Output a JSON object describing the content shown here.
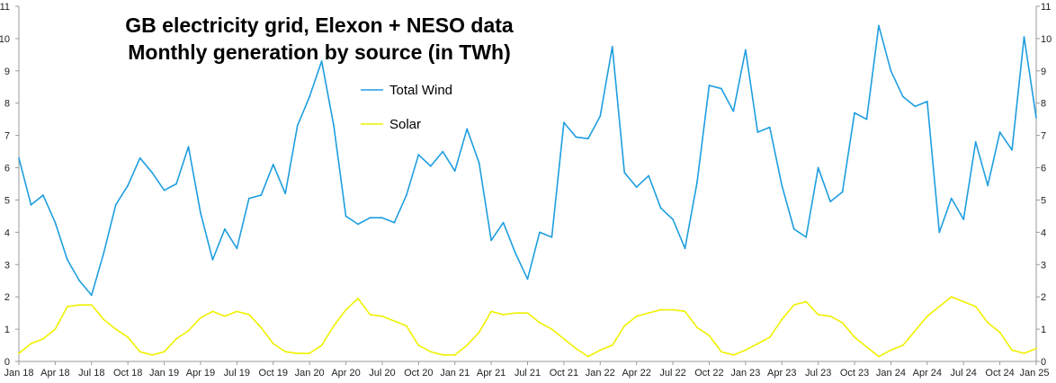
{
  "chart_data": {
    "type": "line",
    "title": "GB electricity grid, Elexon + NESO data",
    "subtitle": "Monthly generation by source (in TWh)",
    "xlabel": "",
    "ylabel": "",
    "ylim": [
      0,
      11
    ],
    "yticks": [
      0,
      1,
      2,
      3,
      4,
      5,
      6,
      7,
      8,
      9,
      10,
      11
    ],
    "y_axis_sides": "left and right",
    "grid": false,
    "legend_placement": "top-center",
    "x_tick_labels": [
      "Jan 18",
      "Apr 18",
      "Jul 18",
      "Oct 18",
      "Jan 19",
      "Apr 19",
      "Jul 19",
      "Oct 19",
      "Jan 20",
      "Apr 20",
      "Jul 20",
      "Oct 20",
      "Jan 21",
      "Apr 21",
      "Jul 21",
      "Oct 21",
      "Jan 22",
      "Apr 22",
      "Jul 22",
      "Oct 22",
      "Jan 23",
      "Apr 23",
      "Jul 23",
      "Oct 23",
      "Jan 24",
      "Apr 24",
      "Jul 24",
      "Oct 24",
      "Jan 25"
    ],
    "x_start": "Jan 18",
    "x_end": "Jan 25",
    "x_step": "1 month",
    "series": [
      {
        "name": "Total Wind",
        "color": "#1e9ee0",
        "values": [
          6.3,
          4.85,
          5.15,
          4.3,
          3.15,
          2.5,
          2.05,
          3.35,
          4.85,
          5.45,
          6.3,
          5.85,
          5.3,
          5.5,
          6.65,
          4.6,
          3.15,
          4.1,
          3.5,
          5.05,
          5.15,
          6.1,
          5.2,
          7.3,
          8.2,
          9.3,
          7.3,
          4.5,
          4.25,
          4.45,
          4.45,
          4.3,
          5.15,
          6.4,
          6.05,
          6.5,
          5.9,
          7.2,
          6.15,
          3.75,
          4.3,
          3.35,
          2.55,
          4.0,
          3.85,
          7.4,
          6.95,
          6.9,
          7.6,
          9.75,
          5.85,
          5.4,
          5.75,
          4.75,
          4.4,
          3.5,
          5.55,
          8.55,
          8.45,
          7.75,
          9.65,
          7.1,
          7.25,
          5.45,
          4.1,
          3.85,
          6.0,
          4.95,
          5.25,
          7.7,
          7.5,
          10.4,
          9.0,
          8.2,
          7.9,
          8.05,
          4.0,
          5.05,
          4.4,
          6.8,
          5.45,
          7.1,
          6.55,
          10.05,
          7.55
        ]
      },
      {
        "name": "Solar",
        "color": "#f0f000",
        "values": [
          0.25,
          0.55,
          0.7,
          1.0,
          1.7,
          1.75,
          1.75,
          1.3,
          1.0,
          0.75,
          0.3,
          0.2,
          0.3,
          0.7,
          0.95,
          1.35,
          1.55,
          1.4,
          1.55,
          1.45,
          1.05,
          0.55,
          0.3,
          0.25,
          0.25,
          0.5,
          1.1,
          1.6,
          1.95,
          1.45,
          1.4,
          1.25,
          1.1,
          0.5,
          0.3,
          0.2,
          0.2,
          0.5,
          0.9,
          1.55,
          1.45,
          1.5,
          1.5,
          1.2,
          1.0,
          0.7,
          0.4,
          0.15,
          0.35,
          0.5,
          1.1,
          1.4,
          1.5,
          1.6,
          1.6,
          1.55,
          1.05,
          0.8,
          0.3,
          0.2,
          0.35,
          0.55,
          0.75,
          1.3,
          1.75,
          1.85,
          1.45,
          1.4,
          1.2,
          0.75,
          0.45,
          0.15,
          0.35,
          0.5,
          0.95,
          1.4,
          1.7,
          2.0,
          1.85,
          1.7,
          1.2,
          0.9,
          0.35,
          0.25,
          0.4
        ]
      }
    ]
  }
}
